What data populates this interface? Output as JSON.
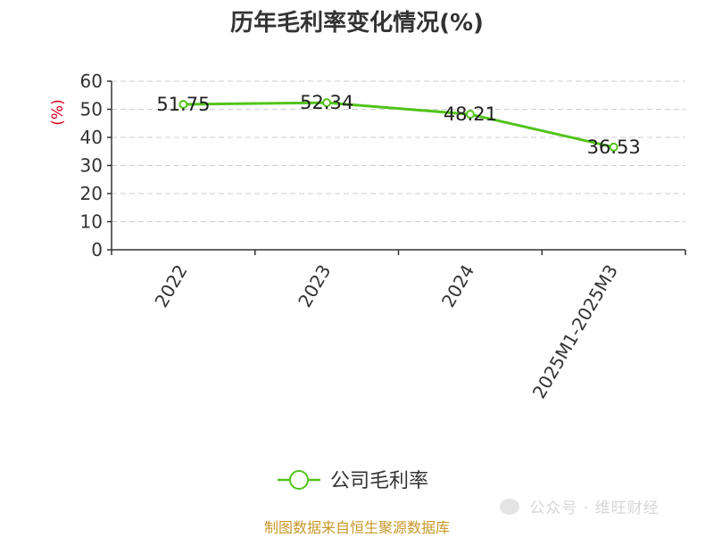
{
  "title": "历年毛利率变化情况(%)",
  "source": "制图数据来自恒生聚源数据库",
  "watermark_text": "公众号 · 维旺财经",
  "colors": {
    "line": "#52c41a",
    "grid": "#cccccc",
    "axis": "#333333",
    "unit": "#d9001b",
    "source": "#c8982a"
  },
  "chart_data": {
    "type": "line",
    "title": "历年毛利率变化情况(%)",
    "ylabel": "(%)",
    "categories": [
      "2022",
      "2023",
      "2024",
      "2025M1-2025M3"
    ],
    "series": [
      {
        "name": "公司毛利率",
        "values": [
          51.75,
          52.34,
          48.21,
          36.53
        ]
      }
    ],
    "data_labels": [
      "51.75",
      "52.34",
      "48.21",
      "36.53"
    ],
    "ylim": [
      0,
      60
    ],
    "yticks": [
      0,
      10,
      20,
      30,
      40,
      50,
      60
    ],
    "grid": true,
    "grid_style": "dashed",
    "legend_position": "bottom-center"
  }
}
